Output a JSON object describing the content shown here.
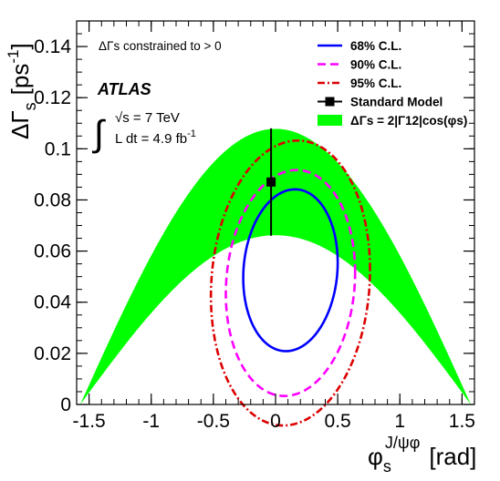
{
  "chart_data": {
    "type": "line",
    "xlabel": "φs^J/ψφ [rad]",
    "xlabel_main": "φ",
    "xlabel_sub": "s",
    "xlabel_sup": "J/ψφ",
    "xlabel_unit": "[rad]",
    "ylabel": "ΔΓs [ps-1]",
    "ylabel_main": "ΔΓ",
    "ylabel_sub": "s",
    "ylabel_unit_open": "[ps",
    "ylabel_unit_sup": "-1",
    "ylabel_unit_close": "]",
    "xlim": [
      -1.6,
      1.6
    ],
    "ylim": [
      0,
      0.15
    ],
    "grid": false,
    "legend_position": "top-right",
    "x_ticks": [
      {
        "value": -1.5,
        "label": "-1.5"
      },
      {
        "value": -1.0,
        "label": "-1"
      },
      {
        "value": -0.5,
        "label": "-0.5"
      },
      {
        "value": 0.0,
        "label": "0"
      },
      {
        "value": 0.5,
        "label": "0.5"
      },
      {
        "value": 1.0,
        "label": "1"
      },
      {
        "value": 1.5,
        "label": "1.5"
      }
    ],
    "y_ticks": [
      {
        "value": 0.0,
        "label": "0"
      },
      {
        "value": 0.02,
        "label": "0.02"
      },
      {
        "value": 0.04,
        "label": "0.04"
      },
      {
        "value": 0.06,
        "label": "0.06"
      },
      {
        "value": 0.08,
        "label": "0.08"
      },
      {
        "value": 0.1,
        "label": "0.1"
      },
      {
        "value": 0.12,
        "label": "0.12"
      },
      {
        "value": 0.14,
        "label": "0.14"
      }
    ],
    "annotations": {
      "constraint": "ΔΓs constrained to > 0",
      "experiment": "ATLAS",
      "energy": "√s = 7 TeV",
      "luminosity": "L dt = 4.9 fb",
      "luminosity_sup": "-1",
      "integral_symbol": "∫"
    },
    "band": {
      "name": "ΔΓs = 2|Γ12|cos(φs)",
      "color": "#00ff00",
      "x_range": [
        -1.5708,
        1.5708
      ],
      "upper_amplitude": 0.1078,
      "lower_amplitude": 0.0662
    },
    "contours": [
      {
        "name": "68% C.L.",
        "color": "#0000ff",
        "dash": "solid",
        "center": [
          0.12,
          0.0525
        ],
        "semi_x": 0.38,
        "semi_y": 0.0315,
        "tilt": 0.14
      },
      {
        "name": "90% C.L.",
        "color": "#ff00ff",
        "dash": "dashed",
        "center": [
          0.12,
          0.0475
        ],
        "semi_x": 0.52,
        "semi_y": 0.044,
        "tilt": 0.14
      },
      {
        "name": "95% C.L.",
        "color": "#dd0000",
        "dash": "dashdot",
        "center": [
          0.12,
          0.0475
        ],
        "semi_x": 0.64,
        "semi_y": 0.0555,
        "tilt": 0.14
      }
    ],
    "standard_model": {
      "name": "Standard Model",
      "x": -0.036,
      "y": 0.087,
      "y_error": [
        0.066,
        0.108
      ],
      "color": "#000000"
    },
    "legend": [
      {
        "label": "68% C.L.",
        "kind": "line",
        "color": "#0000ff",
        "dash": "solid"
      },
      {
        "label": "90% C.L.",
        "kind": "line",
        "color": "#ff00ff",
        "dash": "dashed"
      },
      {
        "label": "95% C.L.",
        "kind": "line",
        "color": "#dd0000",
        "dash": "dashdot"
      },
      {
        "label": "Standard Model",
        "kind": "marker",
        "color": "#000000"
      },
      {
        "label": "ΔΓs = 2|Γ12|cos(φs)",
        "kind": "fill",
        "color": "#00ff00"
      }
    ]
  }
}
